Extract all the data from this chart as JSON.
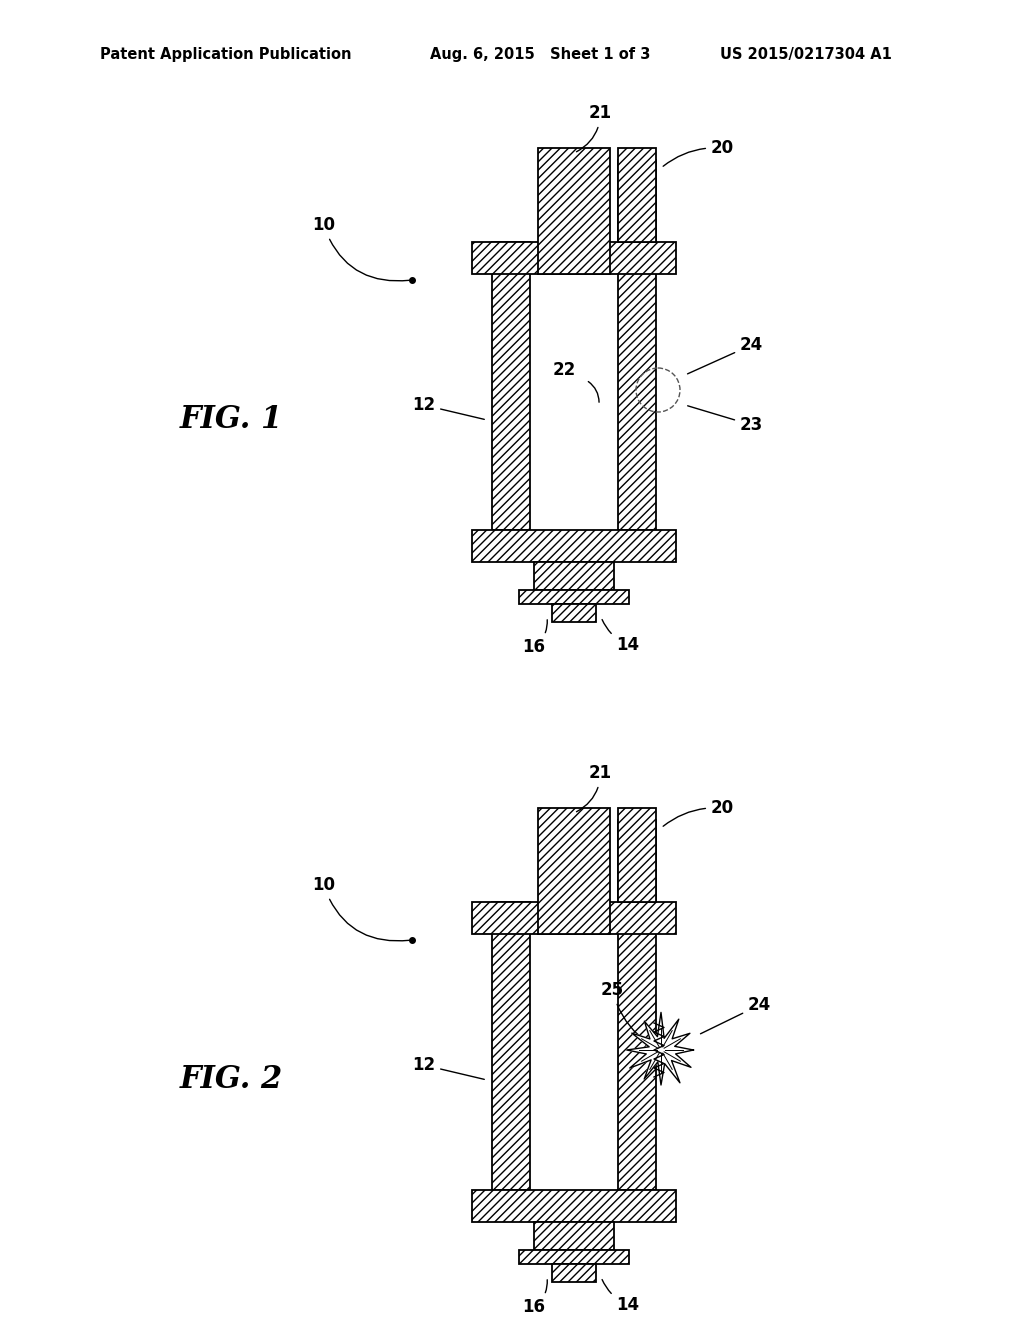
{
  "title_left": "Patent Application Publication",
  "title_center": "Aug. 6, 2015   Sheet 1 of 3",
  "title_right": "US 2015/0217304 A1",
  "fig1_label": "FIG. 1",
  "fig2_label": "FIG. 2",
  "bg_color": "#ffffff",
  "line_color": "#000000",
  "label_fontsize": 12,
  "header_fontsize": 10.5
}
